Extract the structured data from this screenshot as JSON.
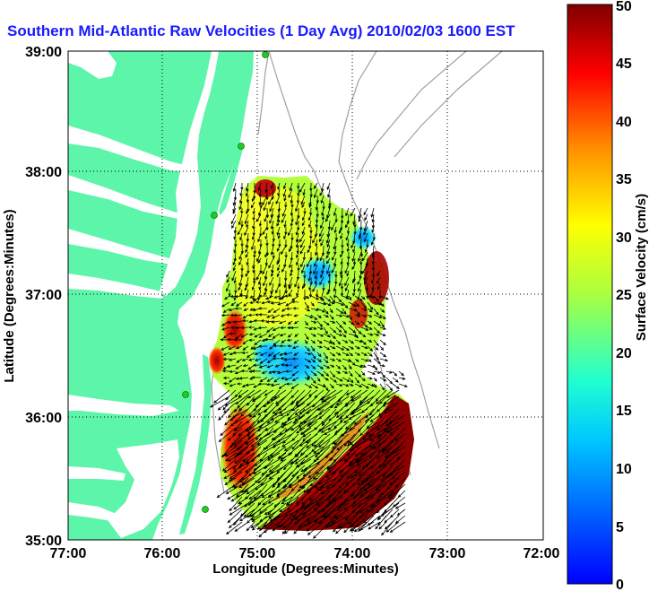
{
  "title": "Southern Mid-Atlantic Raw Velocities (1 Day Avg) 2010/02/03 1600 EST",
  "xlabel": "Longitude (Degrees:Minutes)",
  "ylabel": "Latitude (Degrees:Minutes)",
  "colorbar_label": "Surface Velocity (cm/s)",
  "x_ticks": [
    "77:00",
    "76:00",
    "75:00",
    "74:00",
    "73:00",
    "72:00"
  ],
  "y_ticks": [
    "39:00",
    "38:00",
    "37:00",
    "36:00",
    "35:00"
  ],
  "colorbar_ticks": [
    "0",
    "5",
    "10",
    "15",
    "20",
    "25",
    "30",
    "35",
    "40",
    "45",
    "50"
  ],
  "colors": {
    "land": "#5cf5aa",
    "title": "#1a1aff",
    "station": "#22cc22",
    "bathymetry": "#a0a0a0",
    "vector": "#000000"
  },
  "map": {
    "lon_range_west": [
      77,
      72
    ],
    "lat_range_north": [
      35,
      39
    ],
    "grid": "dotted",
    "colormap": "jet",
    "vmin": 0,
    "vmax": 50
  }
}
